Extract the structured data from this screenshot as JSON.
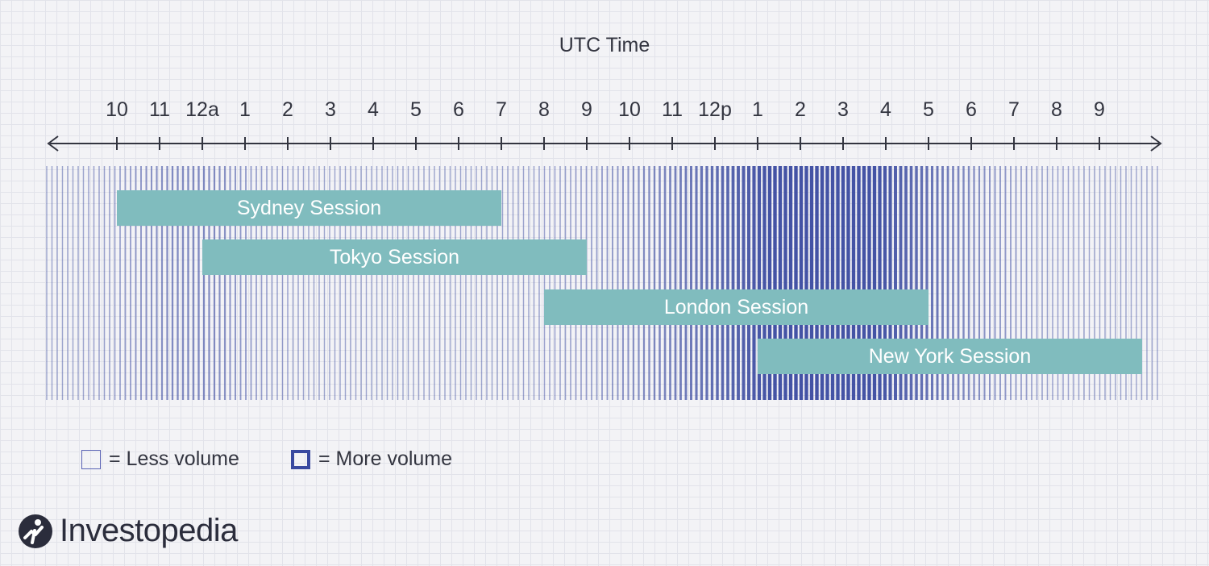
{
  "title": "UTC Time",
  "ticks": [
    "10",
    "11",
    "12a",
    "1",
    "2",
    "3",
    "4",
    "5",
    "6",
    "7",
    "8",
    "9",
    "10",
    "11",
    "12p",
    "1",
    "2",
    "3",
    "4",
    "5",
    "6",
    "7",
    "8",
    "9"
  ],
  "sessions": [
    {
      "label": "Sydney Session",
      "start_hour": 22,
      "end_hour": 7
    },
    {
      "label": "Tokyo Session",
      "start_hour": 0,
      "end_hour": 9
    },
    {
      "label": "London Session",
      "start_hour": 8,
      "end_hour": 17
    },
    {
      "label": "New York Session",
      "start_hour": 13,
      "end_hour": 22
    }
  ],
  "legend": {
    "less": "= Less volume",
    "more": "= More volume"
  },
  "brand": "Investopedia",
  "colors": {
    "session_fill": "#80bcbe",
    "volume_line": "#3a4aa0",
    "text": "#333540",
    "logo_circle": "#2b2d3c"
  }
}
